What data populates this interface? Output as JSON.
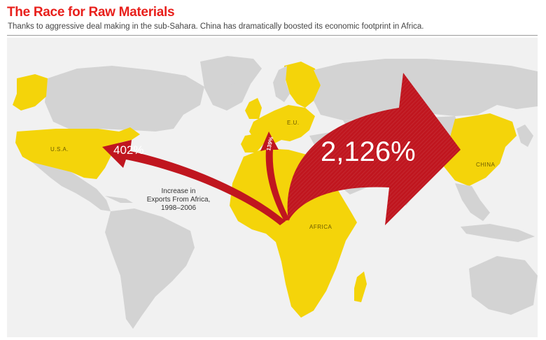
{
  "header": {
    "title": "The Race for Raw Materials",
    "subtitle": "Thanks to aggressive deal making in the sub-Sahara. China has dramatically boosted its economic footprint in Africa."
  },
  "map": {
    "highlight_color": "#f4d40a",
    "land_color": "#d3d3d3",
    "arrow_color": "#c0161f",
    "regions": {
      "usa": "U.S.A.",
      "eu": "E.U.",
      "china": "CHINA",
      "africa": "AFRICA"
    },
    "legend": {
      "line1": "Increase in",
      "line2": "Exports From Africa,",
      "line3": "1998–2006"
    },
    "flows": [
      {
        "to": "U.S.A.",
        "value": "402%"
      },
      {
        "to": "E.U.",
        "value": "139%"
      },
      {
        "to": "CHINA",
        "value": "2,126%"
      }
    ]
  }
}
